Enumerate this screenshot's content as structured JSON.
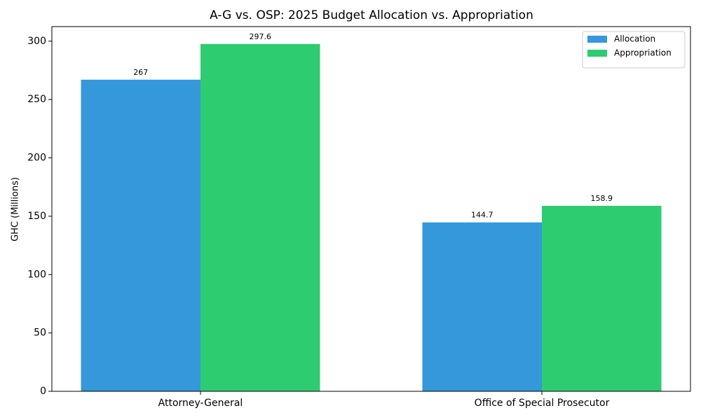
{
  "chart_data": {
    "type": "bar",
    "title": "A-G vs. OSP: 2025 Budget Allocation vs. Appropriation",
    "ylabel": "GHC (Millions)",
    "categories": [
      "Attorney-General",
      "Office of Special Prosecutor"
    ],
    "series": [
      {
        "name": "Allocation",
        "color": "#3498db",
        "values": [
          267,
          144.7
        ]
      },
      {
        "name": "Appropriation",
        "color": "#2ecc71",
        "values": [
          297.6,
          158.9
        ]
      }
    ],
    "ylim": [
      0,
      312.48
    ],
    "yticks": [
      0,
      50,
      100,
      150,
      200,
      250,
      300
    ],
    "legend": "upper-right",
    "grid": false
  }
}
